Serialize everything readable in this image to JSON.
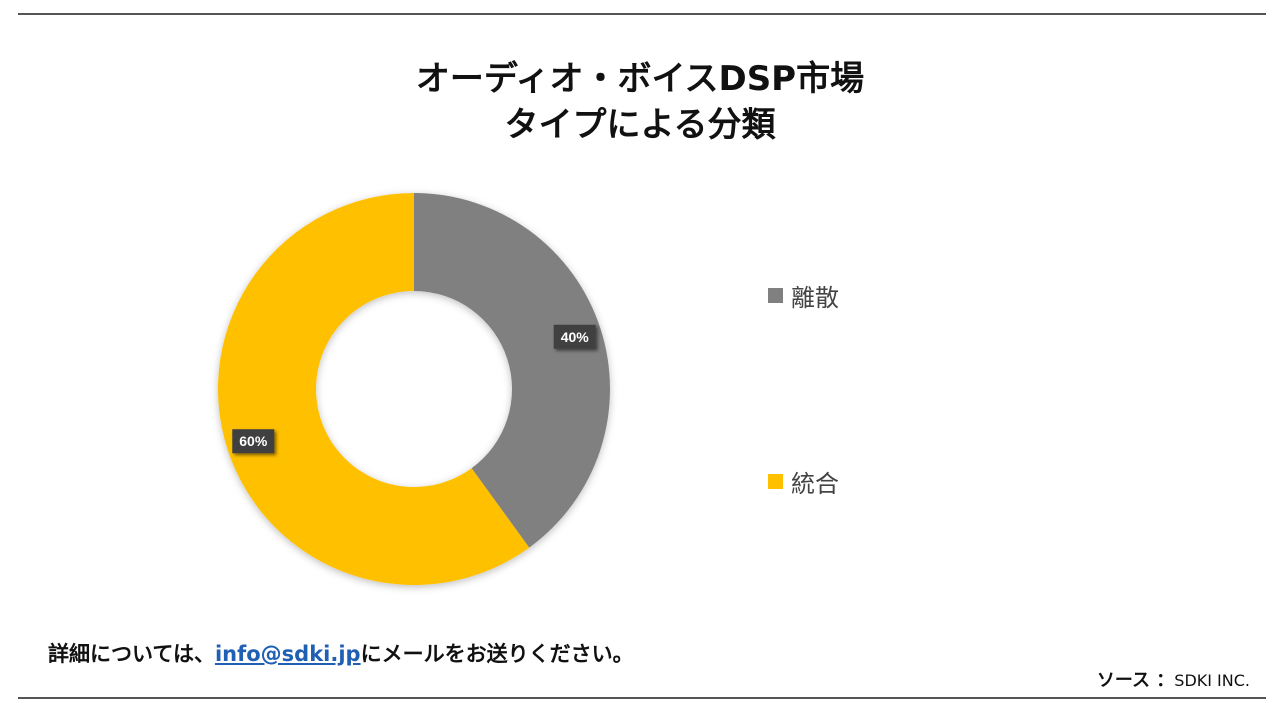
{
  "title": {
    "line1": "オーディオ・ボイスDSP市場",
    "line2": "タイプによる分類"
  },
  "chart_data": {
    "type": "pie",
    "variant": "donut",
    "title": "オーディオ・ボイスDSP市場 タイプによる分類",
    "categories": [
      "離散",
      "統合"
    ],
    "values": [
      40,
      60
    ],
    "data_labels": [
      "40%",
      "60%"
    ],
    "colors": [
      "#808080",
      "#FFC000"
    ],
    "legend_position": "right"
  },
  "footer": {
    "contact_prefix": "詳細については、",
    "email": "info@sdki.jp",
    "contact_suffix": "にメールをお送りください。",
    "source_label": "ソース ：",
    "source_value": "SDKI INC."
  }
}
